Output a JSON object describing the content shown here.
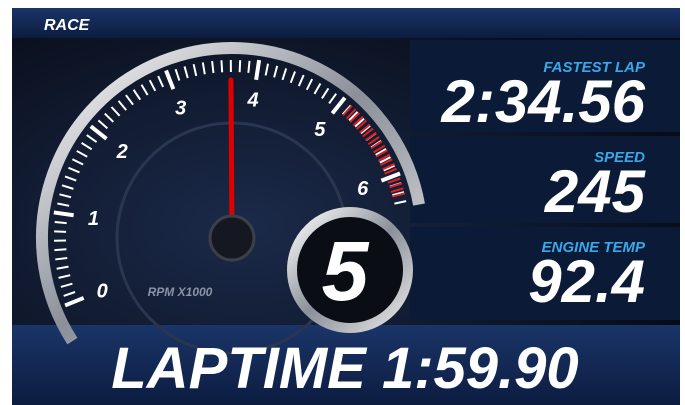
{
  "header": {
    "title": "RACE"
  },
  "gauge": {
    "ticks": [
      0,
      1,
      2,
      3,
      4,
      5,
      6
    ],
    "unit_label": "RPM X1000",
    "needle_value": 3.7,
    "redline": [
      5.1,
      6.25
    ],
    "gear": "5"
  },
  "stats": [
    {
      "label": "FASTEST LAP",
      "value": "2:34.56"
    },
    {
      "label": "SPEED",
      "value": "245"
    },
    {
      "label": "ENGINE TEMP",
      "value": "92.4"
    }
  ],
  "laptime": {
    "label": "LAPTIME",
    "value": "1:59.90"
  }
}
